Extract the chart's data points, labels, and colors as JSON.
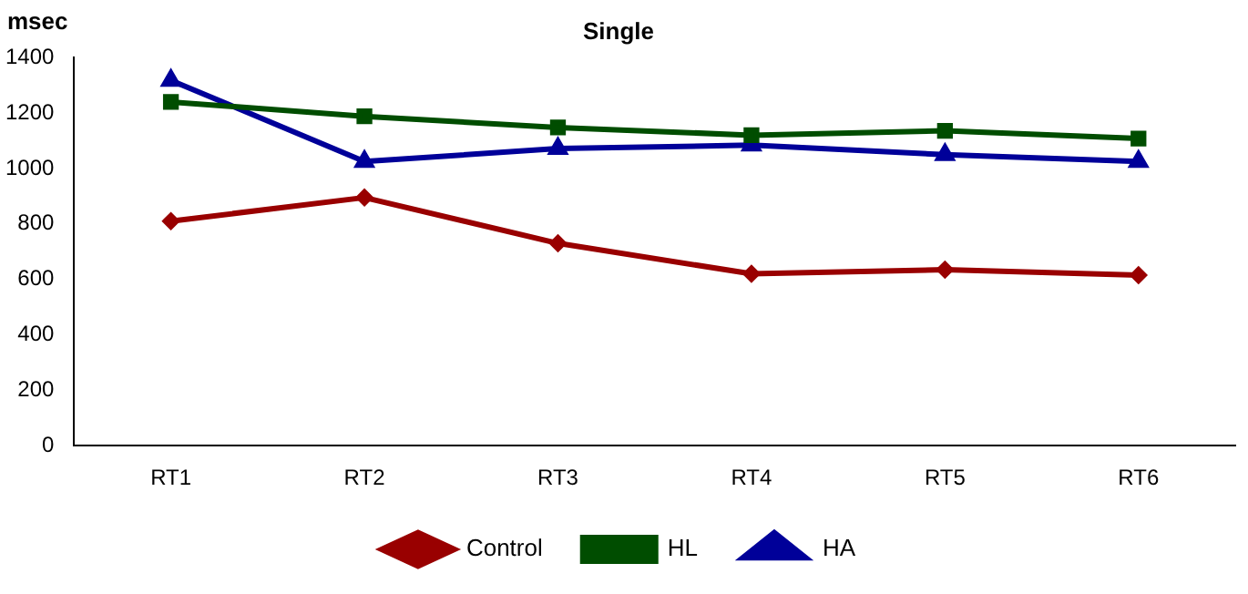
{
  "chart_data": {
    "type": "line",
    "title": "Single",
    "ylabel": "msec",
    "categories": [
      "RT1",
      "RT2",
      "RT3",
      "RT4",
      "RT5",
      "RT6"
    ],
    "series": [
      {
        "name": "Control",
        "color": "#990000",
        "marker": "diamond",
        "values": [
          810,
          895,
          730,
          620,
          635,
          615
        ]
      },
      {
        "name": "HL",
        "color": "#004d00",
        "marker": "square",
        "values": [
          1240,
          1188,
          1148,
          1120,
          1136,
          1108
        ]
      },
      {
        "name": "HA",
        "color": "#000099",
        "marker": "triangle",
        "values": [
          1318,
          1025,
          1072,
          1084,
          1050,
          1025
        ]
      }
    ],
    "ylim": [
      0,
      1400
    ],
    "yticks": [
      0,
      200,
      400,
      600,
      800,
      1000,
      1200,
      1400
    ],
    "grid": false,
    "legend": "bottom",
    "line_style": "solid"
  }
}
